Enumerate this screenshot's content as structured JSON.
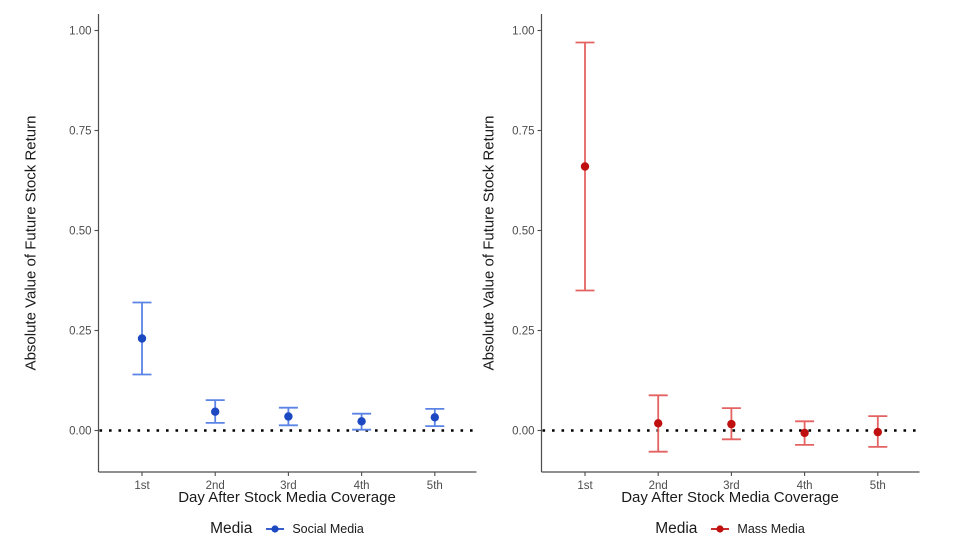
{
  "figure": {
    "background_color": "#ffffff",
    "y_axis_title": "Absolute Value of Future Stock Return",
    "x_axis_title": "Day After Stock Media Coverage",
    "legend_title": "Media"
  },
  "chart_data": [
    {
      "type": "pointrange",
      "panel": "left",
      "series_name": "Social Media",
      "color_point": "#1c49c2",
      "color_range": "#5b84e6",
      "categories": [
        "1st",
        "2nd",
        "3rd",
        "4th",
        "5th"
      ],
      "xlabel": "Day After Stock Media Coverage",
      "ylabel": "Absolute Value of Future Stock Return",
      "y_ticks": [
        0.0,
        0.25,
        0.5,
        0.75,
        1.0
      ],
      "y_tick_labels": [
        "0.00",
        "0.25",
        "0.50",
        "0.75",
        "1.00"
      ],
      "ylim": [
        -0.104,
        1.04
      ],
      "reference_line_y": 0,
      "reference_line_style": "dotted",
      "legend_position": "bottom",
      "points": [
        {
          "x": "1st",
          "estimate": 0.23,
          "lower": 0.14,
          "upper": 0.32
        },
        {
          "x": "2nd",
          "estimate": 0.047,
          "lower": 0.019,
          "upper": 0.076
        },
        {
          "x": "3rd",
          "estimate": 0.035,
          "lower": 0.013,
          "upper": 0.057
        },
        {
          "x": "4th",
          "estimate": 0.023,
          "lower": 0.002,
          "upper": 0.042
        },
        {
          "x": "5th",
          "estimate": 0.033,
          "lower": 0.011,
          "upper": 0.054
        }
      ]
    },
    {
      "type": "pointrange",
      "panel": "right",
      "series_name": "Mass Media",
      "color_point": "#c00f0f",
      "color_range": "#e46262",
      "categories": [
        "1st",
        "2nd",
        "3rd",
        "4th",
        "5th"
      ],
      "xlabel": "Day After Stock Media Coverage",
      "ylabel": "Absolute Value of Future Stock Return",
      "y_ticks": [
        0.0,
        0.25,
        0.5,
        0.75,
        1.0
      ],
      "y_tick_labels": [
        "0.00",
        "0.25",
        "0.50",
        "0.75",
        "1.00"
      ],
      "ylim": [
        -0.104,
        1.04
      ],
      "reference_line_y": 0,
      "reference_line_style": "dotted",
      "legend_position": "bottom",
      "points": [
        {
          "x": "1st",
          "estimate": 0.66,
          "lower": 0.35,
          "upper": 0.97
        },
        {
          "x": "2nd",
          "estimate": 0.018,
          "lower": -0.053,
          "upper": 0.088
        },
        {
          "x": "3rd",
          "estimate": 0.016,
          "lower": -0.022,
          "upper": 0.056
        },
        {
          "x": "4th",
          "estimate": -0.006,
          "lower": -0.036,
          "upper": 0.023
        },
        {
          "x": "5th",
          "estimate": -0.004,
          "lower": -0.041,
          "upper": 0.036
        }
      ]
    }
  ]
}
